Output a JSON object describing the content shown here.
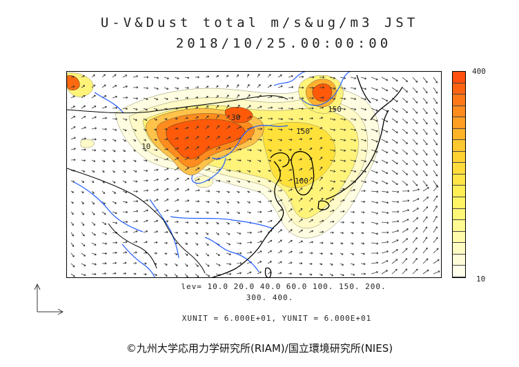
{
  "header": {
    "title": "U-V&Dust total m/s&ug/m3 JST",
    "timestamp": "2018/10/25.00:00:00"
  },
  "map": {
    "contour_labels": [
      "30",
      "10",
      "150",
      "100",
      "150"
    ],
    "colors": {
      "orange_high": "#ff5a0a",
      "orange": "#ff8c1e",
      "yellow_deep": "#ffd21e",
      "yellow": "#fff05a",
      "yellow_pale": "#fff9b4",
      "cream": "#fffde1",
      "coast": "#000000",
      "river": "#1e5aff"
    }
  },
  "colorbar": {
    "max_label": "400",
    "min_label": "10",
    "colors": [
      "#ff5010",
      "#ff6414",
      "#ff7818",
      "#ff8c1e",
      "#ffa024",
      "#ffb428",
      "#ffc82e",
      "#ffd232",
      "#ffdc3c",
      "#ffe646",
      "#ffef55",
      "#fff464",
      "#fff778",
      "#fffa91",
      "#fffbaa",
      "#fffcc3",
      "#fffdd9",
      "#fffeea"
    ]
  },
  "legend": {
    "levels_line1": "lev= 10.0 20.0 40.0 60.0 100. 150. 200.",
    "levels_line2": "300. 400.",
    "units": "XUNIT = 6.000E+01, YUNIT = 6.000E+01"
  },
  "footer": {
    "credit": "©九州大学応用力学研究所(RIAM)/国立環境研究所(NIES)"
  }
}
